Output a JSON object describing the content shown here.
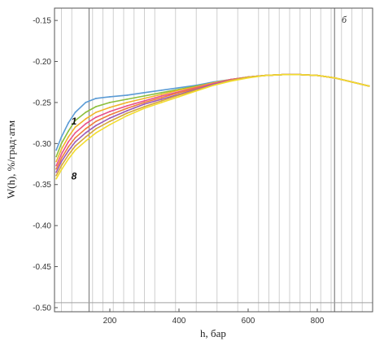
{
  "chart_data": {
    "type": "line",
    "panel_label": "б",
    "xlabel": "h, бар",
    "ylabel": "W(h), %/град·атм",
    "xlim": [
      40,
      960
    ],
    "ylim": [
      -0.505,
      -0.135
    ],
    "xticks": [
      200,
      400,
      600,
      800
    ],
    "yticks": [
      -0.5,
      -0.45,
      -0.4,
      -0.35,
      -0.3,
      -0.25,
      -0.2,
      -0.15
    ],
    "ytick_labels": [
      "-0.50",
      "-0.45",
      "-0.40",
      "-0.35",
      "-0.30",
      "-0.25",
      "-0.20",
      "-0.15"
    ],
    "xtick_labels": [
      "200",
      "400",
      "600",
      "800"
    ],
    "grid": "vertical",
    "vertical_gridlines": [
      60,
      90,
      150,
      180,
      210,
      240,
      270,
      300,
      330,
      390,
      450,
      510,
      570,
      630,
      660,
      690,
      720,
      750,
      780,
      810,
      840,
      870,
      900,
      930
    ],
    "highlight_vertical": [
      140,
      850
    ],
    "reference_hlines": [
      -0.494
    ],
    "series_labels": [
      {
        "text": "1",
        "x": 65,
        "y": -0.273
      },
      {
        "text": "8",
        "x": 65,
        "y": -0.34
      }
    ],
    "series": [
      {
        "color": "#5b9bd5",
        "points": [
          [
            45,
            -0.308
          ],
          [
            60,
            -0.292
          ],
          [
            80,
            -0.275
          ],
          [
            100,
            -0.262
          ],
          [
            130,
            -0.25
          ],
          [
            160,
            -0.245
          ],
          [
            200,
            -0.243
          ],
          [
            250,
            -0.241
          ],
          [
            300,
            -0.238
          ],
          [
            350,
            -0.235
          ],
          [
            400,
            -0.232
          ],
          [
            450,
            -0.229
          ],
          [
            500,
            -0.225
          ],
          [
            550,
            -0.222
          ],
          [
            600,
            -0.219
          ],
          [
            650,
            -0.217
          ],
          [
            700,
            -0.216
          ],
          [
            750,
            -0.216
          ],
          [
            800,
            -0.217
          ],
          [
            850,
            -0.22
          ],
          [
            900,
            -0.225
          ],
          [
            950,
            -0.23
          ]
        ]
      },
      {
        "color": "#8bbf3c",
        "points": [
          [
            45,
            -0.316
          ],
          [
            60,
            -0.3
          ],
          [
            80,
            -0.285
          ],
          [
            100,
            -0.272
          ],
          [
            130,
            -0.262
          ],
          [
            160,
            -0.255
          ],
          [
            200,
            -0.25
          ],
          [
            250,
            -0.246
          ],
          [
            300,
            -0.242
          ],
          [
            350,
            -0.238
          ],
          [
            400,
            -0.234
          ],
          [
            450,
            -0.23
          ],
          [
            500,
            -0.226
          ],
          [
            550,
            -0.222
          ],
          [
            600,
            -0.219
          ],
          [
            650,
            -0.217
          ],
          [
            700,
            -0.216
          ],
          [
            750,
            -0.216
          ],
          [
            800,
            -0.217
          ],
          [
            850,
            -0.22
          ],
          [
            900,
            -0.225
          ],
          [
            950,
            -0.23
          ]
        ]
      },
      {
        "color": "#f0b429",
        "points": [
          [
            45,
            -0.322
          ],
          [
            60,
            -0.307
          ],
          [
            80,
            -0.292
          ],
          [
            100,
            -0.28
          ],
          [
            130,
            -0.27
          ],
          [
            160,
            -0.262
          ],
          [
            200,
            -0.256
          ],
          [
            250,
            -0.25
          ],
          [
            300,
            -0.245
          ],
          [
            350,
            -0.24
          ],
          [
            400,
            -0.235
          ],
          [
            450,
            -0.231
          ],
          [
            500,
            -0.226
          ],
          [
            550,
            -0.222
          ],
          [
            600,
            -0.219
          ],
          [
            650,
            -0.217
          ],
          [
            700,
            -0.216
          ],
          [
            750,
            -0.216
          ],
          [
            800,
            -0.217
          ],
          [
            850,
            -0.22
          ],
          [
            900,
            -0.225
          ],
          [
            950,
            -0.23
          ]
        ]
      },
      {
        "color": "#e8508a",
        "points": [
          [
            45,
            -0.327
          ],
          [
            60,
            -0.313
          ],
          [
            80,
            -0.298
          ],
          [
            100,
            -0.287
          ],
          [
            130,
            -0.276
          ],
          [
            160,
            -0.268
          ],
          [
            200,
            -0.261
          ],
          [
            250,
            -0.254
          ],
          [
            300,
            -0.248
          ],
          [
            350,
            -0.242
          ],
          [
            400,
            -0.237
          ],
          [
            450,
            -0.232
          ],
          [
            500,
            -0.227
          ],
          [
            550,
            -0.222
          ],
          [
            600,
            -0.219
          ],
          [
            650,
            -0.217
          ],
          [
            700,
            -0.216
          ],
          [
            750,
            -0.216
          ],
          [
            800,
            -0.217
          ],
          [
            850,
            -0.22
          ],
          [
            900,
            -0.225
          ],
          [
            950,
            -0.23
          ]
        ]
      },
      {
        "color": "#ef7d3a",
        "points": [
          [
            45,
            -0.331
          ],
          [
            60,
            -0.318
          ],
          [
            80,
            -0.304
          ],
          [
            100,
            -0.293
          ],
          [
            130,
            -0.282
          ],
          [
            160,
            -0.273
          ],
          [
            200,
            -0.265
          ],
          [
            250,
            -0.257
          ],
          [
            300,
            -0.25
          ],
          [
            350,
            -0.244
          ],
          [
            400,
            -0.238
          ],
          [
            450,
            -0.233
          ],
          [
            500,
            -0.228
          ],
          [
            550,
            -0.223
          ],
          [
            600,
            -0.219
          ],
          [
            650,
            -0.217
          ],
          [
            700,
            -0.216
          ],
          [
            750,
            -0.216
          ],
          [
            800,
            -0.217
          ],
          [
            850,
            -0.22
          ],
          [
            900,
            -0.225
          ],
          [
            950,
            -0.23
          ]
        ]
      },
      {
        "color": "#9b59b6",
        "points": [
          [
            45,
            -0.335
          ],
          [
            60,
            -0.322
          ],
          [
            80,
            -0.309
          ],
          [
            100,
            -0.298
          ],
          [
            130,
            -0.287
          ],
          [
            160,
            -0.278
          ],
          [
            200,
            -0.269
          ],
          [
            250,
            -0.26
          ],
          [
            300,
            -0.252
          ],
          [
            350,
            -0.246
          ],
          [
            400,
            -0.24
          ],
          [
            450,
            -0.234
          ],
          [
            500,
            -0.228
          ],
          [
            550,
            -0.223
          ],
          [
            600,
            -0.219
          ],
          [
            650,
            -0.217
          ],
          [
            700,
            -0.216
          ],
          [
            750,
            -0.216
          ],
          [
            800,
            -0.217
          ],
          [
            850,
            -0.22
          ],
          [
            900,
            -0.225
          ],
          [
            950,
            -0.23
          ]
        ]
      },
      {
        "color": "#d6a53a",
        "points": [
          [
            45,
            -0.339
          ],
          [
            60,
            -0.327
          ],
          [
            80,
            -0.314
          ],
          [
            100,
            -0.303
          ],
          [
            130,
            -0.292
          ],
          [
            160,
            -0.282
          ],
          [
            200,
            -0.273
          ],
          [
            250,
            -0.263
          ],
          [
            300,
            -0.255
          ],
          [
            350,
            -0.248
          ],
          [
            400,
            -0.241
          ],
          [
            450,
            -0.235
          ],
          [
            500,
            -0.229
          ],
          [
            550,
            -0.223
          ],
          [
            600,
            -0.219
          ],
          [
            650,
            -0.217
          ],
          [
            700,
            -0.216
          ],
          [
            750,
            -0.216
          ],
          [
            800,
            -0.217
          ],
          [
            850,
            -0.22
          ],
          [
            900,
            -0.225
          ],
          [
            950,
            -0.23
          ]
        ]
      },
      {
        "color": "#f2dc2e",
        "points": [
          [
            45,
            -0.343
          ],
          [
            60,
            -0.332
          ],
          [
            80,
            -0.319
          ],
          [
            100,
            -0.308
          ],
          [
            130,
            -0.297
          ],
          [
            160,
            -0.287
          ],
          [
            200,
            -0.277
          ],
          [
            250,
            -0.266
          ],
          [
            300,
            -0.257
          ],
          [
            350,
            -0.25
          ],
          [
            400,
            -0.243
          ],
          [
            450,
            -0.236
          ],
          [
            500,
            -0.229
          ],
          [
            550,
            -0.224
          ],
          [
            600,
            -0.22
          ],
          [
            650,
            -0.217
          ],
          [
            700,
            -0.216
          ],
          [
            750,
            -0.216
          ],
          [
            800,
            -0.217
          ],
          [
            850,
            -0.22
          ],
          [
            900,
            -0.225
          ],
          [
            950,
            -0.23
          ]
        ]
      }
    ]
  }
}
